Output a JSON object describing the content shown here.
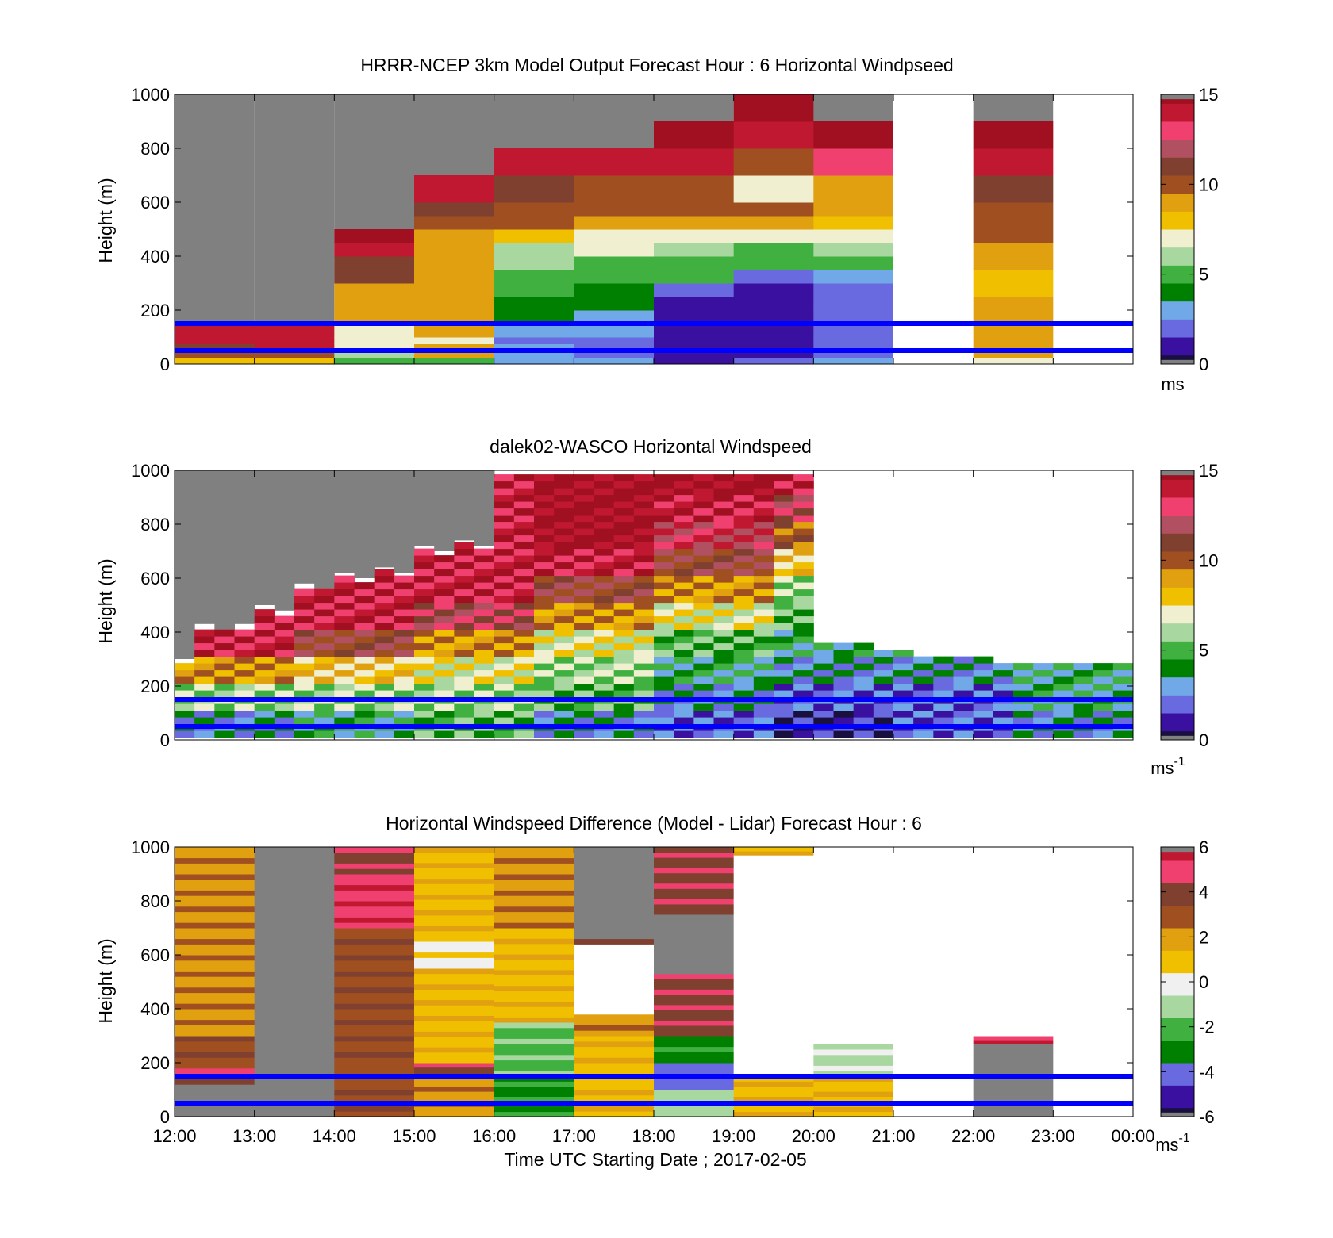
{
  "figure": {
    "xlabel": "Time UTC  Starting Date ; 2017-02-05"
  },
  "colors": {
    "overlay_lines": "#0000ff",
    "no_data": "#808080",
    "speed_colormap": [
      "#1a1040",
      "#3a10a0",
      "#6a6ae0",
      "#70a8e8",
      "#008000",
      "#40b040",
      "#a8d8a0",
      "#f0f0d0",
      "#f0c000",
      "#e0a010",
      "#a05020",
      "#804030",
      "#b05060",
      "#f04070",
      "#c01830",
      "#a01020"
    ],
    "diff_colormap": [
      "#1a1040",
      "#3a10a0",
      "#6a6ae0",
      "#008000",
      "#40b040",
      "#a8d8a0",
      "#f0f0f0",
      "#f0c000",
      "#e0a010",
      "#a05020",
      "#804030",
      "#f04070",
      "#c01830"
    ]
  },
  "chart_data": [
    {
      "type": "heatmap",
      "title": "HRRR-NCEP 3km Model Output   Forecast Hour : 6 Horizontal Windpseed",
      "ylabel": "Height (m)",
      "ylim": [
        0,
        1000
      ],
      "yticks": [
        "0",
        "200",
        "400",
        "600",
        "800",
        "1000"
      ],
      "xlim": [
        "12:00",
        "00:00"
      ],
      "x_hours": [
        12,
        13,
        14,
        15,
        16,
        17,
        18,
        19,
        20,
        21,
        22,
        23
      ],
      "height_bins_m": [
        0,
        25,
        50,
        75,
        100,
        150,
        200,
        250,
        300,
        350,
        400,
        450,
        500,
        550,
        600,
        700,
        800,
        900,
        1000
      ],
      "cell_speed_ms": [
        [
          8,
          10,
          11,
          14,
          14,
          null,
          null,
          null,
          null,
          null,
          null,
          null,
          null,
          null,
          null,
          null,
          null,
          null
        ],
        [
          8,
          10,
          14,
          14,
          14,
          null,
          null,
          null,
          null,
          null,
          null,
          null,
          null,
          null,
          null,
          null,
          null,
          null
        ],
        [
          5,
          6,
          7,
          7,
          7,
          9,
          9,
          9,
          11,
          11,
          14,
          15,
          null,
          null,
          null,
          null,
          null,
          null
        ],
        [
          5,
          9,
          9,
          7,
          9,
          9,
          9,
          9,
          9,
          9,
          9,
          9,
          10,
          11,
          14,
          null,
          null,
          null
        ],
        [
          3,
          3,
          3,
          2,
          3,
          4,
          4,
          5,
          5,
          6,
          6,
          8,
          10,
          10,
          11,
          14,
          null,
          null
        ],
        [
          3,
          2,
          2,
          2,
          3,
          3,
          4,
          4,
          5,
          5,
          7,
          7,
          9,
          10,
          10,
          14,
          null,
          null
        ],
        [
          1,
          1,
          1,
          1,
          1,
          1,
          1,
          2,
          5,
          5,
          6,
          7,
          9,
          10,
          10,
          14,
          15,
          null
        ],
        [
          2,
          1,
          1,
          1,
          1,
          1,
          1,
          1,
          2,
          5,
          5,
          7,
          9,
          10,
          7,
          10,
          14,
          15
        ],
        [
          3,
          2,
          2,
          2,
          2,
          2,
          2,
          2,
          3,
          5,
          6,
          7,
          8,
          9,
          9,
          13,
          15,
          null
        ],
        [
          null,
          null,
          null,
          null,
          null,
          null,
          null,
          null,
          null,
          null,
          null,
          null,
          null,
          null,
          null,
          null,
          null,
          null
        ],
        [
          7,
          9,
          9,
          9,
          9,
          9,
          9,
          8,
          8,
          9,
          9,
          10,
          10,
          10,
          11,
          14,
          15,
          null
        ],
        [
          null,
          null,
          null,
          null,
          null,
          null,
          null,
          null,
          null,
          null,
          null,
          null,
          null,
          null,
          null,
          null,
          null,
          null
        ]
      ],
      "overlay_heights_m": [
        50,
        150
      ],
      "colorbar": {
        "min": 0,
        "max": 15,
        "ticks": [
          "0",
          "5",
          "10",
          "15"
        ],
        "label": "ms"
      }
    },
    {
      "type": "heatmap",
      "title": "dalek02-WASCO  Horizontal Windspeed",
      "ylabel": "Height (m)",
      "ylim": [
        0,
        1000
      ],
      "yticks": [
        "0",
        "200",
        "400",
        "600",
        "800",
        "1000"
      ],
      "xlim": [
        "12:00",
        "00:00"
      ],
      "bins_per_hour": 4,
      "bin_centers_hours": [
        12.125,
        12.375,
        12.625,
        12.875,
        13.125,
        13.375,
        13.625,
        13.875,
        14.125,
        14.375,
        14.625,
        14.875,
        15.125,
        15.375,
        15.625,
        15.875,
        16.125,
        16.375,
        16.625,
        16.875,
        17.125,
        17.375,
        17.625,
        17.875,
        18.125,
        18.375,
        18.625,
        18.875,
        19.125,
        19.375,
        19.625,
        19.875,
        20.125,
        20.375,
        20.625,
        20.875,
        21.125,
        21.375,
        21.625,
        21.875,
        22.125,
        22.375,
        22.625,
        22.875,
        23.125,
        23.375,
        23.625,
        23.875
      ],
      "data_top_m": [
        300,
        430,
        410,
        430,
        500,
        480,
        580,
        560,
        620,
        600,
        640,
        620,
        720,
        700,
        740,
        720,
        1000,
        1000,
        1000,
        1000,
        1000,
        1000,
        1000,
        1000,
        1000,
        1000,
        1000,
        1000,
        1000,
        1000,
        1000,
        1000,
        380,
        370,
        360,
        350,
        340,
        330,
        320,
        320,
        310,
        300,
        300,
        300,
        300,
        300,
        300,
        300
      ],
      "profile_heights_m": [
        20,
        100,
        200,
        300,
        400,
        500,
        600,
        700,
        800,
        900,
        1000
      ],
      "profile_speed_ms": [
        [
          3,
          6,
          9,
          14
        ],
        [
          4,
          6,
          8,
          11,
          14
        ],
        [
          5,
          6,
          7,
          9,
          12,
          14
        ],
        [
          3,
          5,
          6,
          7,
          9,
          11,
          14,
          15
        ],
        [
          2,
          3,
          4,
          5,
          7,
          9,
          11,
          13,
          14,
          15,
          15
        ],
        [
          1,
          2,
          3,
          4,
          5,
          6,
          8,
          10,
          12,
          14,
          15
        ],
        [
          2,
          2,
          3,
          4,
          4,
          5,
          6,
          7,
          8,
          10,
          12
        ],
        [
          3,
          4,
          4,
          3,
          4,
          5,
          6,
          5,
          7,
          10,
          12
        ]
      ],
      "overlay_heights_m": [
        50,
        150
      ],
      "colorbar": {
        "min": 0,
        "max": 15,
        "ticks": [
          "0",
          "5",
          "10",
          "15"
        ],
        "label": "ms",
        "label_exp": "-1"
      }
    },
    {
      "type": "heatmap",
      "title": "Horizontal Windspeed Difference (Model - Lidar) Forecast Hour : 6",
      "ylabel": "Height (m)",
      "ylim": [
        0,
        1000
      ],
      "yticks": [
        "0",
        "200",
        "400",
        "600",
        "800",
        "1000"
      ],
      "xlim": [
        "12:00",
        "00:00"
      ],
      "xticks": [
        "12:00",
        "13:00",
        "14:00",
        "15:00",
        "16:00",
        "17:00",
        "18:00",
        "19:00",
        "20:00",
        "21:00",
        "22:00",
        "23:00",
        "00:00"
      ],
      "x_hours": [
        12,
        13,
        14,
        15,
        16,
        17,
        18,
        19,
        20,
        21,
        22,
        23
      ],
      "column_profiles": [
        {
          "ranges": [
            [
              0,
              120,
              null
            ],
            [
              120,
              150,
              4
            ],
            [
              150,
              180,
              5
            ],
            [
              180,
              300,
              3
            ],
            [
              300,
              1000,
              2
            ]
          ]
        },
        {
          "ranges": [
            [
              0,
              1000,
              null
            ]
          ]
        },
        {
          "ranges": [
            [
              0,
              200,
              3
            ],
            [
              200,
              700,
              3
            ],
            [
              700,
              900,
              5
            ],
            [
              900,
              1000,
              4
            ]
          ]
        },
        {
          "ranges": [
            [
              0,
              150,
              2
            ],
            [
              150,
              200,
              4
            ],
            [
              200,
              550,
              1
            ],
            [
              550,
              650,
              0
            ],
            [
              650,
              1000,
              1
            ]
          ]
        },
        {
          "ranges": [
            [
              0,
              150,
              -3
            ],
            [
              150,
              350,
              -2
            ],
            [
              350,
              700,
              1
            ],
            [
              700,
              1000,
              2
            ]
          ]
        },
        {
          "ranges": [
            [
              0,
              300,
              1
            ],
            [
              300,
              380,
              2
            ],
            [
              380,
              640,
              "blank"
            ],
            [
              640,
              660,
              4
            ],
            [
              660,
              1000,
              null
            ]
          ]
        },
        {
          "ranges": [
            [
              0,
              100,
              -1
            ],
            [
              100,
              200,
              -4
            ],
            [
              200,
              300,
              -3
            ],
            [
              300,
              530,
              4
            ],
            [
              530,
              750,
              null
            ],
            [
              750,
              1000,
              4
            ]
          ]
        },
        {
          "ranges": [
            [
              0,
              150,
              1
            ],
            [
              150,
              160,
              -1
            ],
            [
              160,
              970,
              "blank"
            ],
            [
              970,
              1000,
              1
            ]
          ]
        },
        {
          "ranges": [
            [
              0,
              150,
              1
            ],
            [
              150,
              270,
              -1
            ],
            [
              270,
              1000,
              "blank"
            ]
          ]
        },
        {
          "ranges": [
            [
              0,
              1000,
              "blank"
            ]
          ]
        },
        {
          "ranges": [
            [
              0,
              270,
              null
            ],
            [
              270,
              300,
              5
            ],
            [
              300,
              1000,
              "blank"
            ]
          ]
        },
        {
          "ranges": [
            [
              0,
              1000,
              "blank"
            ]
          ]
        }
      ],
      "overlay_heights_m": [
        50,
        150
      ],
      "colorbar": {
        "min": -6,
        "max": 6,
        "ticks": [
          "-6",
          "-4",
          "-2",
          "0",
          "2",
          "4",
          "6"
        ],
        "label": "ms",
        "label_exp": "-1"
      }
    }
  ]
}
